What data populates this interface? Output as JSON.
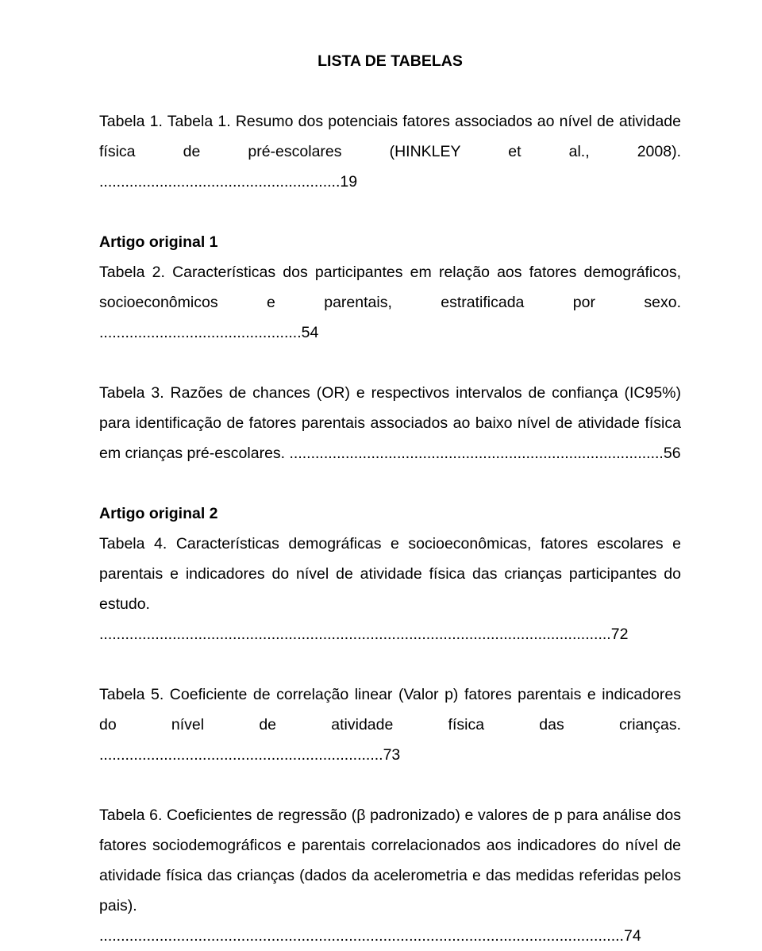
{
  "title": "LISTA DE TABELAS",
  "entries": [
    {
      "label": "Tabela 1.",
      "text": " Tabela 1. Resumo dos potenciais fatores associados ao nível de atividade física de pré-escolares (HINKLEY et al., 2008).",
      "page": "19"
    }
  ],
  "section1": "Artigo original 1",
  "section1_entries": [
    {
      "label": "Tabela 2.",
      "text": " Características dos participantes em relação aos fatores demográficos, socioeconômicos e parentais, estratificada por sexo.",
      "page": "54"
    },
    {
      "label": "Tabela 3.",
      "text": " Razões de chances (OR) e respectivos intervalos de confiança (IC95%) para identificação de fatores parentais associados ao baixo nível de atividade física em crianças pré-escolares.",
      "page": "56"
    }
  ],
  "section2": "Artigo original 2",
  "section2_entries": [
    {
      "label": "Tabela 4.",
      "text": " Características demográficas e socioeconômicas, fatores escolares e parentais e indicadores do nível de atividade física das crianças participantes do estudo.",
      "page": "72"
    },
    {
      "label": "Tabela 5.",
      "text": " Coeficiente de correlação linear (Valor p) fatores parentais e indicadores do nível de atividade física das crianças.",
      "page": "73"
    },
    {
      "label": "Tabela 6.",
      "text": " Coeficientes de regressão (β padronizado) e valores de p para análise dos fatores sociodemográficos e parentais correlacionados aos indicadores do nível de atividade física das crianças (dados da acelerometria e das medidas referidas pelos pais).",
      "page": "74"
    }
  ]
}
